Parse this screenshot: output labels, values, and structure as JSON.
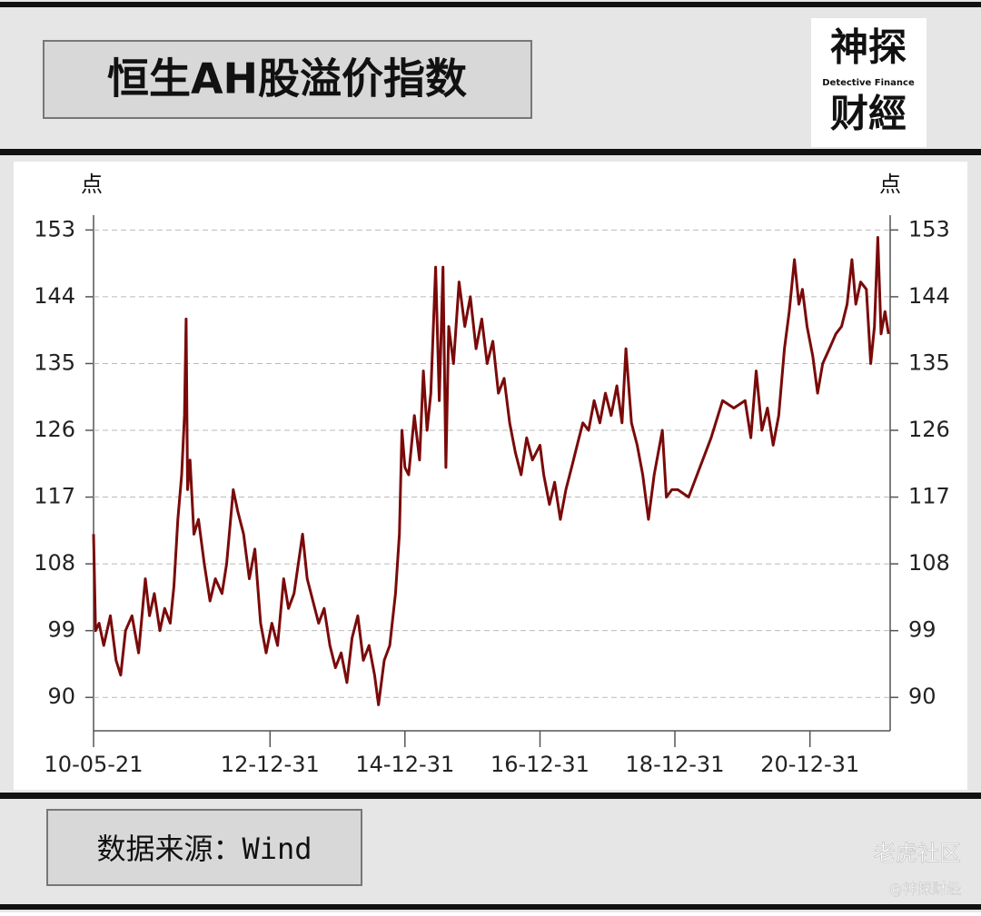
{
  "header": {
    "logo_top": "神探",
    "logo_middle": "Detective Finance",
    "logo_bottom": "财經"
  },
  "chart_data": {
    "type": "line",
    "title": "恒生AH股溢价指数",
    "source": "数据来源：Wind",
    "y_label": "点",
    "y2_label": "点",
    "color": "#7a0a0a",
    "grid": true,
    "xlim": [
      "10-05-21",
      "22-03-10"
    ],
    "xticks": [
      "10-05-21",
      "12-12-31",
      "14-12-31",
      "16-12-31",
      "18-12-31",
      "20-12-31"
    ],
    "ylim": [
      85.5,
      155
    ],
    "yticks": [
      90,
      99,
      108,
      117,
      126,
      135,
      144,
      153
    ],
    "y2lim": [
      85.5,
      155
    ],
    "y2ticks": [
      90,
      99,
      108,
      117,
      126,
      135,
      144,
      153
    ],
    "x": [
      "10-05-21",
      "10-06-01",
      "10-06-20",
      "10-07-15",
      "10-08-20",
      "10-09-20",
      "10-10-15",
      "10-11-10",
      "10-12-15",
      "11-01-20",
      "11-02-25",
      "11-03-20",
      "11-04-15",
      "11-05-15",
      "11-06-10",
      "11-07-10",
      "11-07-30",
      "11-08-20",
      "11-09-10",
      "11-09-25",
      "11-10-04",
      "11-10-12",
      "11-10-25",
      "11-11-15",
      "11-12-10",
      "12-01-10",
      "12-02-10",
      "12-03-10",
      "12-04-15",
      "12-05-10",
      "12-06-15",
      "12-07-10",
      "12-08-10",
      "12-09-10",
      "12-10-10",
      "12-11-10",
      "12-12-10",
      "13-01-10",
      "13-02-10",
      "13-03-15",
      "13-04-10",
      "13-05-10",
      "13-06-25",
      "13-07-20",
      "13-08-20",
      "13-09-20",
      "13-10-20",
      "13-11-20",
      "13-12-20",
      "14-01-20",
      "14-02-20",
      "14-03-20",
      "14-04-20",
      "14-05-20",
      "14-06-20",
      "14-07-20",
      "14-08-10",
      "14-09-10",
      "14-10-10",
      "14-11-10",
      "14-12-01",
      "14-12-15",
      "14-12-31",
      "15-01-20",
      "15-02-20",
      "15-03-20",
      "15-04-10",
      "15-04-30",
      "15-05-20",
      "15-06-15",
      "15-07-05",
      "15-07-25",
      "15-08-10",
      "15-08-25",
      "15-09-20",
      "15-10-20",
      "15-11-20",
      "15-12-20",
      "16-01-20",
      "16-02-20",
      "16-03-20",
      "16-04-20",
      "16-05-20",
      "16-06-20",
      "16-07-20",
      "16-08-20",
      "16-09-20",
      "16-10-20",
      "16-11-20",
      "16-12-31",
      "17-01-20",
      "17-02-20",
      "17-03-20",
      "17-04-20",
      "17-05-20",
      "17-06-20",
      "17-07-20",
      "17-08-20",
      "17-09-20",
      "17-10-20",
      "17-11-20",
      "17-12-20",
      "18-01-20",
      "18-02-20",
      "18-03-20",
      "18-04-10",
      "18-05-10",
      "18-06-10",
      "18-07-10",
      "18-08-10",
      "18-09-10",
      "18-10-24",
      "18-11-15",
      "18-12-15",
      "19-01-15",
      "19-03-15",
      "19-05-15",
      "19-07-15",
      "19-09-15",
      "19-11-15",
      "20-01-15",
      "20-02-15",
      "20-03-15",
      "20-04-15",
      "20-05-15",
      "20-06-15",
      "20-07-15",
      "20-08-15",
      "20-09-10",
      "20-10-08",
      "20-11-01",
      "20-11-20",
      "20-12-15",
      "21-01-15",
      "21-02-10",
      "21-03-10",
      "21-04-15",
      "21-05-20",
      "21-06-20",
      "21-07-20",
      "21-08-15",
      "21-09-05",
      "21-10-01",
      "21-11-01",
      "21-11-25",
      "21-12-15",
      "22-01-02",
      "22-01-20",
      "22-02-10",
      "22-03-01"
    ],
    "values": [
      112,
      99,
      100,
      97,
      101,
      95,
      93,
      99,
      101,
      96,
      106,
      101,
      104,
      99,
      102,
      100,
      105,
      114,
      120,
      128,
      141,
      118,
      122,
      112,
      114,
      108,
      103,
      106,
      104,
      108,
      118,
      115,
      112,
      106,
      110,
      100,
      96,
      100,
      97,
      106,
      102,
      104,
      112,
      106,
      103,
      100,
      102,
      97,
      94,
      96,
      92,
      98,
      101,
      95,
      97,
      93,
      89,
      95,
      97,
      104,
      112,
      126,
      121,
      120,
      128,
      122,
      134,
      126,
      131,
      148,
      130,
      148,
      121,
      140,
      135,
      146,
      140,
      144,
      137,
      141,
      135,
      138,
      131,
      133,
      127,
      123,
      120,
      125,
      122,
      124,
      120,
      116,
      119,
      114,
      118,
      121,
      124,
      127,
      126,
      130,
      127,
      131,
      128,
      132,
      127,
      137,
      127,
      124,
      120,
      114,
      120,
      126,
      117,
      118,
      118,
      117,
      121,
      125,
      130,
      129,
      130,
      125,
      134,
      126,
      129,
      124,
      128,
      137,
      142,
      149,
      143,
      145,
      140,
      136,
      131,
      135,
      137,
      139,
      140,
      143,
      149,
      143,
      146,
      145,
      135,
      140,
      152,
      139,
      142,
      139
    ]
  },
  "watermark": {
    "site": "老虎社区",
    "handle": "@神探财经"
  }
}
